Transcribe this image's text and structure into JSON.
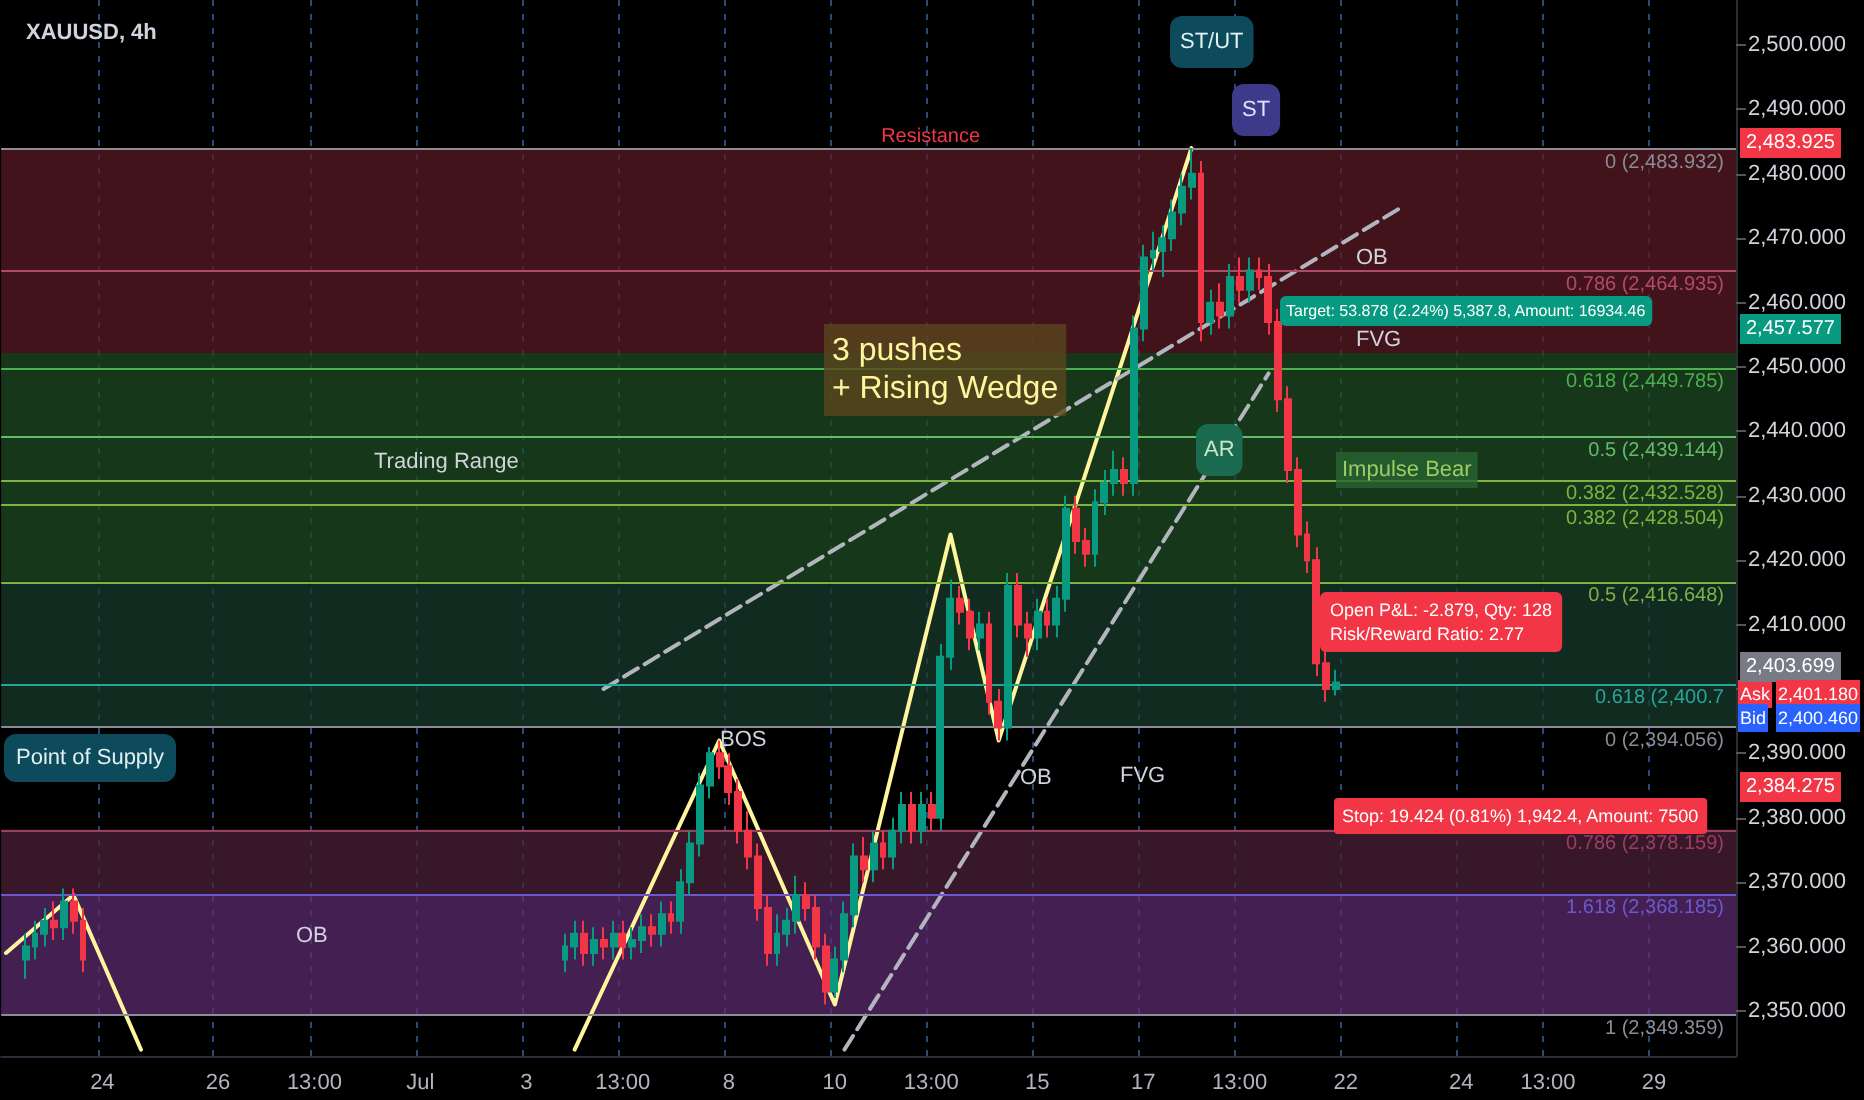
{
  "chart_data": {
    "type": "candlestick",
    "title": "XAUUSD, 4h",
    "categories": [
      null,
      null,
      null,
      null,
      null,
      null,
      null,
      null,
      null,
      null,
      "24",
      null,
      null,
      null,
      null,
      null,
      null,
      null,
      null,
      null,
      null,
      null,
      "26",
      null,
      null,
      null,
      null,
      null,
      null,
      null,
      null,
      null,
      "13:00",
      null,
      null,
      null,
      null,
      null,
      null,
      null,
      null,
      null,
      null,
      "Jul",
      null,
      null,
      null,
      null,
      null,
      null,
      null,
      null,
      null,
      null,
      "3",
      null,
      null,
      null,
      null,
      null,
      null,
      null,
      null,
      null,
      "13:00",
      null,
      null,
      null,
      null,
      null,
      null,
      null,
      null,
      null,
      null,
      "8",
      null,
      null,
      null,
      null,
      null,
      null,
      null,
      null,
      null,
      null,
      "10",
      null,
      null,
      null,
      null,
      null,
      null,
      null,
      null,
      null,
      "13:00",
      null,
      null,
      null,
      null,
      null,
      null,
      null,
      null,
      null,
      null,
      "15",
      null,
      null,
      null,
      null,
      null,
      null,
      null,
      null,
      null,
      null,
      "17",
      null,
      null,
      null,
      null,
      null,
      null,
      null,
      null,
      null,
      "13:00",
      null,
      null,
      null,
      null,
      null,
      null,
      null,
      null,
      null,
      null,
      "22",
      null,
      null,
      null,
      null,
      null,
      null,
      null,
      null,
      null,
      null,
      null,
      "24",
      null,
      null,
      null,
      null,
      null,
      null,
      null,
      null,
      "13:00",
      null,
      null,
      null,
      null,
      null,
      null,
      null,
      null,
      null,
      null,
      "29",
      null,
      null,
      null,
      null,
      null,
      null,
      null,
      null
    ],
    "ohlc": [
      null,
      null,
      [
        2358,
        2362,
        2355,
        2360
      ],
      [
        2360,
        2364,
        2358,
        2362
      ],
      [
        2362,
        2366,
        2360,
        2364
      ],
      [
        2364,
        2367,
        2361,
        2363
      ],
      [
        2363,
        2369,
        2361,
        2367
      ],
      [
        2367,
        2369,
        2362,
        2364
      ],
      [
        2364,
        2366,
        2356,
        2358
      ],
      null,
      null,
      null,
      null,
      null,
      null,
      null,
      null,
      null,
      null,
      null,
      null,
      null,
      null,
      null,
      null,
      null,
      null,
      null,
      null,
      null,
      null,
      null,
      null,
      null,
      null,
      null,
      null,
      null,
      null,
      null,
      null,
      null,
      null,
      null,
      null,
      null,
      null,
      null,
      null,
      null,
      null,
      null,
      null,
      null,
      null,
      null,
      null,
      null,
      [
        2358,
        2362,
        2356,
        2360
      ],
      [
        2360,
        2364,
        2358,
        2362
      ],
      [
        2362,
        2364,
        2357,
        2359
      ],
      [
        2359,
        2363,
        2357,
        2361
      ],
      [
        2361,
        2363,
        2358,
        2360
      ],
      [
        2360,
        2364,
        2358,
        2362
      ],
      [
        2362,
        2364,
        2358,
        2360
      ],
      [
        2360,
        2363,
        2358,
        2361
      ],
      [
        2361,
        2365,
        2359,
        2363
      ],
      [
        2363,
        2365,
        2360,
        2362
      ],
      [
        2362,
        2367,
        2360,
        2365
      ],
      [
        2365,
        2367,
        2362,
        2364
      ],
      [
        2364,
        2372,
        2362,
        2370
      ],
      [
        2370,
        2378,
        2368,
        2376
      ],
      [
        2376,
        2387,
        2374,
        2385
      ],
      [
        2385,
        2391,
        2383,
        2390
      ],
      [
        2390,
        2392,
        2386,
        2388
      ],
      [
        2388,
        2390,
        2382,
        2384
      ],
      [
        2384,
        2386,
        2376,
        2378
      ],
      [
        2378,
        2381,
        2372,
        2374
      ],
      [
        2374,
        2376,
        2364,
        2366
      ],
      [
        2366,
        2368,
        2357,
        2359
      ],
      [
        2359,
        2365,
        2357,
        2362
      ],
      [
        2362,
        2366,
        2360,
        2364
      ],
      [
        2364,
        2371,
        2362,
        2368
      ],
      [
        2368,
        2370,
        2364,
        2366
      ],
      [
        2366,
        2368,
        2358,
        2360
      ],
      [
        2360,
        2362,
        2351,
        2353
      ],
      [
        2353,
        2360,
        2352,
        2358
      ],
      [
        2358,
        2367,
        2356,
        2365
      ],
      [
        2365,
        2376,
        2363,
        2374
      ],
      [
        2374,
        2377,
        2370,
        2372
      ],
      [
        2372,
        2378,
        2370,
        2376
      ],
      [
        2376,
        2378,
        2372,
        2374
      ],
      [
        2374,
        2380,
        2372,
        2378
      ],
      [
        2378,
        2384,
        2376,
        2382
      ],
      [
        2382,
        2384,
        2376,
        2378
      ],
      [
        2378,
        2384,
        2376,
        2382
      ],
      [
        2382,
        2384,
        2378,
        2380
      ],
      [
        2380,
        2407,
        2378,
        2405
      ],
      [
        2405,
        2417,
        2403,
        2414
      ],
      [
        2414,
        2416,
        2410,
        2412
      ],
      [
        2412,
        2414,
        2406,
        2408
      ],
      [
        2408,
        2412,
        2406,
        2410
      ],
      [
        2410,
        2412,
        2396,
        2398
      ],
      [
        2398,
        2400,
        2392,
        2394
      ],
      [
        2394,
        2418,
        2392,
        2416
      ],
      [
        2416,
        2418,
        2408,
        2410
      ],
      [
        2410,
        2412,
        2405,
        2408
      ],
      [
        2408,
        2414,
        2406,
        2412
      ],
      [
        2412,
        2414,
        2408,
        2410
      ],
      [
        2410,
        2416,
        2408,
        2414
      ],
      [
        2414,
        2430,
        2412,
        2428
      ],
      [
        2428,
        2430,
        2421,
        2423
      ],
      [
        2423,
        2425,
        2419,
        2421
      ],
      [
        2421,
        2431,
        2419,
        2429
      ],
      [
        2429,
        2434,
        2427,
        2432
      ],
      [
        2432,
        2437,
        2430,
        2434
      ],
      [
        2434,
        2436,
        2430,
        2432
      ],
      [
        2432,
        2458,
        2430,
        2456
      ],
      [
        2456,
        2469,
        2454,
        2467
      ],
      [
        2467,
        2471,
        2465,
        2468
      ],
      [
        2468,
        2472,
        2464,
        2470
      ],
      [
        2470,
        2476,
        2468,
        2474
      ],
      [
        2474,
        2480,
        2472,
        2478
      ],
      [
        2478,
        2484,
        2476,
        2480
      ],
      [
        2480,
        2482,
        2454,
        2457
      ],
      [
        2457,
        2462,
        2455,
        2460
      ],
      [
        2460,
        2463,
        2456,
        2458
      ],
      [
        2458,
        2466,
        2456,
        2464
      ],
      [
        2464,
        2467,
        2460,
        2462
      ],
      [
        2462,
        2467,
        2460,
        2465
      ],
      [
        2465,
        2467,
        2462,
        2464
      ],
      [
        2464,
        2466,
        2455,
        2457
      ],
      [
        2457,
        2459,
        2443,
        2445
      ],
      [
        2445,
        2447,
        2432,
        2434
      ],
      [
        2434,
        2436,
        2422,
        2424
      ],
      [
        2424,
        2426,
        2418,
        2420
      ],
      [
        2420,
        2422,
        2402,
        2404
      ],
      [
        2404,
        2406,
        2398,
        2400
      ],
      [
        2400,
        2403,
        2399,
        2401
      ],
      null,
      null,
      null,
      null,
      null,
      null,
      null,
      null,
      null,
      null,
      null,
      null,
      null,
      null,
      null,
      null,
      null,
      null,
      null,
      null,
      null,
      null,
      null,
      null,
      null,
      null,
      null,
      null,
      null,
      null,
      null,
      null,
      null,
      null,
      null,
      null,
      null,
      null,
      null,
      null,
      null
    ],
    "series": [
      {
        "type": "line",
        "color": "#fff59d",
        "values": [
          2359,
          null,
          null,
          null,
          null,
          null,
          null,
          2368,
          null,
          null,
          null,
          null,
          null,
          null,
          2344,
          null,
          null,
          null,
          null,
          null,
          null,
          null,
          null,
          null,
          null,
          null,
          null,
          null,
          null,
          null,
          null,
          null,
          null,
          null,
          null,
          null,
          null,
          null,
          null,
          null,
          null,
          null,
          null,
          null,
          null,
          null,
          null,
          null,
          null,
          null,
          null,
          null,
          null,
          null,
          null,
          null,
          null,
          null,
          null,
          null,
          null,
          null,
          null,
          null,
          null,
          null,
          null,
          null,
          null,
          null,
          null,
          null,
          null,
          null,
          null,
          null,
          null,
          null,
          null,
          null,
          null,
          null,
          null,
          null,
          null,
          null,
          null,
          null,
          null,
          null,
          null,
          null,
          null,
          null,
          null,
          null,
          null,
          null,
          null,
          null,
          null,
          null,
          null,
          null,
          null,
          null,
          null,
          null,
          null,
          null,
          null,
          null,
          null,
          null,
          null,
          null,
          null,
          null,
          null,
          null,
          null,
          null,
          null,
          null,
          null,
          null,
          null,
          null,
          null,
          null,
          null,
          null,
          null,
          null,
          null,
          null,
          null,
          null,
          null,
          null,
          null,
          null,
          null,
          null,
          null,
          null,
          null,
          null,
          null,
          null,
          null,
          null,
          null,
          null,
          null,
          null,
          null,
          null,
          null,
          null,
          null,
          null,
          null,
          null,
          null,
          null,
          null,
          null,
          null,
          null,
          null,
          null,
          null,
          null,
          null,
          null,
          null,
          null,
          null,
          null
        ]
      },
      {
        "type": "line",
        "color": "#fff59d",
        "values": [
          null,
          null,
          null,
          null,
          null,
          null,
          null,
          null,
          null,
          null,
          null,
          null,
          null,
          null,
          null,
          null,
          null,
          null,
          null,
          null,
          null,
          null,
          null,
          null,
          null,
          null,
          null,
          null,
          null,
          null,
          null,
          null,
          null,
          null,
          null,
          null,
          null,
          null,
          null,
          null,
          null,
          null,
          null,
          null,
          null,
          null,
          null,
          null,
          null,
          null,
          null,
          null,
          null,
          null,
          null,
          null,
          null,
          null,
          null,
          2344,
          null,
          null,
          null,
          null,
          null,
          null,
          null,
          null,
          null,
          null,
          null,
          null,
          null,
          null,
          2392,
          null,
          null,
          null,
          null,
          null,
          null,
          null,
          null,
          null,
          null,
          null,
          2351,
          null,
          null,
          null,
          null,
          null,
          null,
          null,
          null,
          null,
          null,
          null,
          2424,
          null,
          null,
          null,
          null,
          2392,
          null,
          null,
          null,
          null,
          null,
          null,
          null,
          null,
          null,
          null,
          null,
          null,
          null,
          null,
          null,
          null,
          null,
          null,
          null,
          2484,
          null,
          null,
          null,
          null,
          null,
          null,
          null,
          null,
          null,
          null,
          null,
          null,
          null,
          null,
          null,
          null,
          null,
          null,
          null,
          null,
          null,
          null,
          null,
          null,
          null,
          null,
          null,
          null,
          null,
          null,
          null,
          null,
          null,
          null,
          null,
          null,
          null,
          null,
          null,
          null,
          null,
          null,
          null,
          null,
          null,
          null,
          null,
          null,
          null,
          null,
          null,
          null,
          null,
          null,
          null,
          null
        ]
      },
      {
        "type": "line",
        "color": "#b2b5be",
        "line_style": "dashed",
        "values": [
          null,
          null,
          null,
          null,
          null,
          null,
          null,
          null,
          null,
          null,
          null,
          null,
          null,
          null,
          null,
          null,
          null,
          null,
          null,
          null,
          null,
          null,
          null,
          null,
          null,
          null,
          null,
          null,
          null,
          null,
          null,
          null,
          null,
          null,
          null,
          null,
          null,
          null,
          null,
          null,
          null,
          null,
          null,
          null,
          null,
          null,
          null,
          null,
          null,
          null,
          null,
          null,
          null,
          null,
          null,
          null,
          null,
          null,
          null,
          null,
          null,
          null,
          2400,
          null,
          null,
          null,
          null,
          null,
          null,
          null,
          null,
          null,
          null,
          null,
          null,
          null,
          null,
          null,
          null,
          null,
          null,
          null,
          null,
          null,
          null,
          null,
          null,
          null,
          null,
          null,
          null,
          null,
          null,
          null,
          null,
          null,
          null,
          null,
          null,
          null,
          null,
          null,
          null,
          null,
          null,
          null,
          null,
          null,
          null,
          null,
          null,
          null,
          null,
          null,
          null,
          null,
          null,
          null,
          null,
          null,
          null,
          null,
          null,
          null,
          null,
          null,
          null,
          null,
          null,
          null,
          null,
          null,
          null,
          null,
          null,
          null,
          null,
          null,
          null,
          null,
          null,
          null,
          null,
          null,
          null,
          2475,
          null,
          null,
          null,
          null,
          null,
          null,
          null,
          null,
          null,
          null,
          null,
          null,
          null,
          null,
          null,
          null,
          null,
          null,
          null,
          null,
          null,
          null,
          null,
          null,
          null,
          null,
          null,
          null,
          null,
          null,
          null,
          null,
          null,
          null
        ]
      },
      {
        "type": "line",
        "color": "#b2b5be",
        "line_style": "dashed",
        "values": [
          null,
          null,
          null,
          null,
          null,
          null,
          null,
          null,
          null,
          null,
          null,
          null,
          null,
          null,
          null,
          null,
          null,
          null,
          null,
          null,
          null,
          null,
          null,
          null,
          null,
          null,
          null,
          null,
          null,
          null,
          null,
          null,
          null,
          null,
          null,
          null,
          null,
          null,
          null,
          null,
          null,
          null,
          null,
          null,
          null,
          null,
          null,
          null,
          null,
          null,
          null,
          null,
          null,
          null,
          null,
          null,
          null,
          null,
          null,
          null,
          null,
          null,
          null,
          null,
          null,
          null,
          null,
          null,
          null,
          null,
          null,
          null,
          null,
          null,
          null,
          null,
          null,
          null,
          null,
          null,
          null,
          null,
          null,
          null,
          null,
          null,
          null,
          2344,
          null,
          null,
          null,
          null,
          null,
          null,
          null,
          null,
          null,
          null,
          null,
          null,
          null,
          null,
          null,
          null,
          null,
          null,
          null,
          null,
          null,
          null,
          null,
          null,
          null,
          null,
          null,
          null,
          null,
          null,
          null,
          null,
          null,
          null,
          null,
          null,
          null,
          null,
          null,
          null,
          null,
          null,
          null,
          2449,
          null,
          null,
          null,
          null,
          null,
          null,
          null,
          null,
          null,
          null,
          null,
          null,
          null,
          null,
          null,
          null,
          null,
          null,
          null,
          null,
          null,
          null,
          null,
          null,
          null,
          null,
          null,
          null,
          null,
          null,
          null,
          null,
          null,
          null,
          null,
          null,
          null,
          null,
          null,
          null,
          null,
          null,
          null,
          null,
          null,
          null,
          null,
          null
        ]
      }
    ],
    "ylim": [
      2343,
      2507
    ],
    "yticks": [
      {
        "value": 2350,
        "label": "2,350.000"
      },
      {
        "value": 2360,
        "label": "2,360.000"
      },
      {
        "value": 2370,
        "label": "2,370.000"
      },
      {
        "value": 2380,
        "label": "2,380.000"
      },
      {
        "value": 2390,
        "label": "2,390.000"
      },
      {
        "value": 2400,
        "label": null
      },
      {
        "value": 2410,
        "label": "2,410.000"
      },
      {
        "value": 2420,
        "label": "2,420.000"
      },
      {
        "value": 2430,
        "label": "2,430.000"
      },
      {
        "value": 2440,
        "label": "2,440.000"
      },
      {
        "value": 2450,
        "label": "2,450.000"
      },
      {
        "value": 2460,
        "label": "2,460.000"
      },
      {
        "value": 2470,
        "label": "2,470.000"
      },
      {
        "value": 2480,
        "label": "2,480.000"
      },
      {
        "value": 2490,
        "label": "2,490.000"
      },
      {
        "value": 2500,
        "label": "2,500.000"
      }
    ],
    "grid": "x",
    "bands": [
      {
        "axis": "y",
        "from": 2452.177,
        "to": 2483.932,
        "color": "#5a1a26"
      },
      {
        "axis": "y",
        "from": 2416.648,
        "to": 2452.177,
        "color": "#1e4a22"
      },
      {
        "axis": "y",
        "from": 2394.056,
        "to": 2416.648,
        "color": "#173a2c"
      },
      {
        "axis": "y",
        "from": 2368.185,
        "to": 2378.159,
        "color": "#4a1f36"
      },
      {
        "axis": "y",
        "from": 2349.359,
        "to": 2368.185,
        "color": "#5a2a6e"
      }
    ],
    "ref_lines": [
      {
        "axis": "y",
        "value": 2483.925,
        "label": "Resistance",
        "color": "#f23645",
        "line_style": "dotted"
      },
      {
        "axis": "y",
        "value": 2483.932,
        "label": "0 (2,483.932)",
        "color": "#8a8d96"
      },
      {
        "axis": "y",
        "value": 2464.935,
        "label": "0.786 (2,464.935)",
        "color": "#b04a6a"
      },
      {
        "axis": "y",
        "value": 2449.785,
        "label": "0.618 (2,449.785)",
        "color": "#4caf50"
      },
      {
        "axis": "y",
        "value": 2439.144,
        "label": "0.5 (2,439.144)",
        "color": "#66bb6a"
      },
      {
        "axis": "y",
        "value": 2432.528,
        "label": "0.382 (2,432.528)",
        "color": "#7cb342"
      },
      {
        "axis": "y",
        "value": 2428.504,
        "label": "0.382 (2,428.504)",
        "color": "#7cb342"
      },
      {
        "axis": "y",
        "value": 2416.648,
        "label": "0.5 (2,416.648)",
        "color": "#7cb342"
      },
      {
        "axis": "y",
        "value": 2400.7,
        "label": "0.618 (2,400.7",
        "color": "#26a69a"
      },
      {
        "axis": "y",
        "value": 2394.056,
        "label": "0 (2,394.056)",
        "color": "#8a8d96"
      },
      {
        "axis": "y",
        "value": 2378.159,
        "label": "0.786 (2,378.159)",
        "color": "#9c3d62"
      },
      {
        "axis": "y",
        "value": 2368.185,
        "label": "1.618 (2,368.185)",
        "color": "#6a5acd"
      },
      {
        "axis": "y",
        "value": 2349.359,
        "label": "1 (2,349.359)",
        "color": "#8a8d96"
      }
    ],
    "annotations": [
      "Trading Range",
      "Point of Supply",
      "OB",
      "BOS",
      "OB",
      "FVG",
      "FVG",
      "OB",
      "3 pushes\n+ Rising Wedge",
      "ST/UT",
      "ST",
      "AR",
      "Impulse Bear",
      "Target: 53.878 (2.24%) 5,387.8, Amount: 16934.46",
      "Open P&L: -2.879, Qty: 128\nRisk/Reward Ratio: 2.77",
      "Stop: 19.424 (0.81%) 1,942.4, Amount: 7500",
      "Ask",
      "Bid",
      "2,483.925",
      "2,457.577",
      "2,403.699",
      "2,401.180",
      "2,400.460",
      "2,384.275"
    ]
  }
}
